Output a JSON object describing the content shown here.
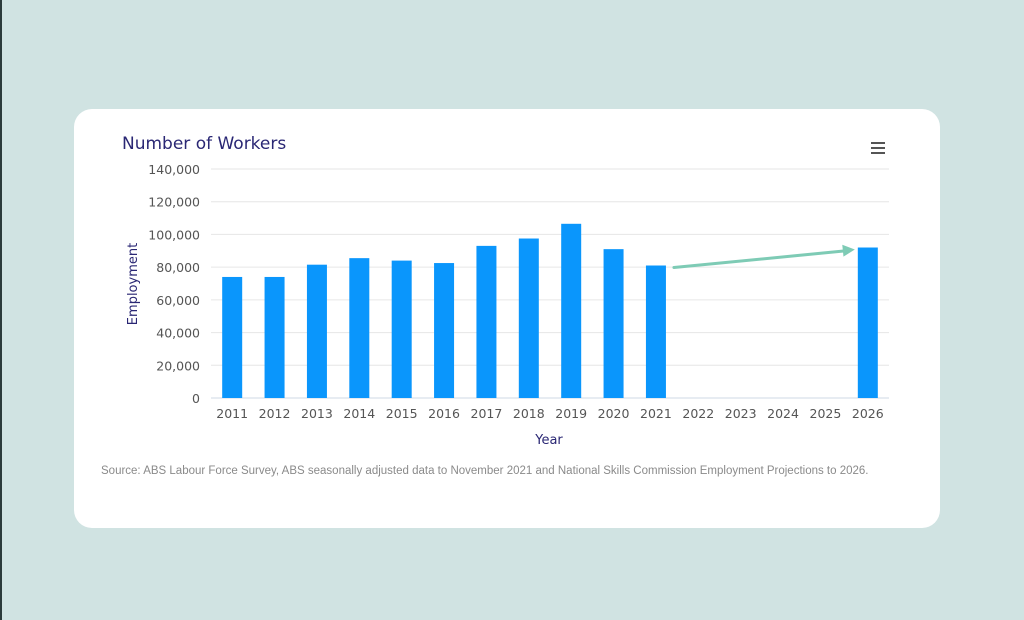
{
  "card": {
    "menu_icon": "hamburger-menu-icon",
    "source_text": "Source: ABS Labour Force Survey, ABS seasonally adjusted data to November 2021 and National Skills Commission Employment Projections to 2026."
  },
  "colors": {
    "background": "#d0e3e2",
    "bar": "#0a96fc",
    "arrow": "#7ecbb5",
    "title": "#2a2774"
  },
  "chart_data": {
    "type": "bar",
    "title": "Number of Workers",
    "xlabel": "Year",
    "ylabel": "Employment",
    "ylim": [
      0,
      140000
    ],
    "yticks": [
      0,
      20000,
      40000,
      60000,
      80000,
      100000,
      120000,
      140000
    ],
    "ytick_labels": [
      "0",
      "20,000",
      "40,000",
      "60,000",
      "80,000",
      "100,000",
      "120,000",
      "140,000"
    ],
    "categories": [
      "2011",
      "2012",
      "2013",
      "2014",
      "2015",
      "2016",
      "2017",
      "2018",
      "2019",
      "2020",
      "2021",
      "2022",
      "2023",
      "2024",
      "2025",
      "2026"
    ],
    "values": [
      74000,
      74000,
      81500,
      85500,
      84000,
      82500,
      93000,
      97500,
      106500,
      91000,
      81000,
      null,
      null,
      null,
      null,
      92000
    ],
    "grid": true,
    "annotation": {
      "type": "arrow",
      "from_category": "2021",
      "to_category": "2026"
    }
  }
}
